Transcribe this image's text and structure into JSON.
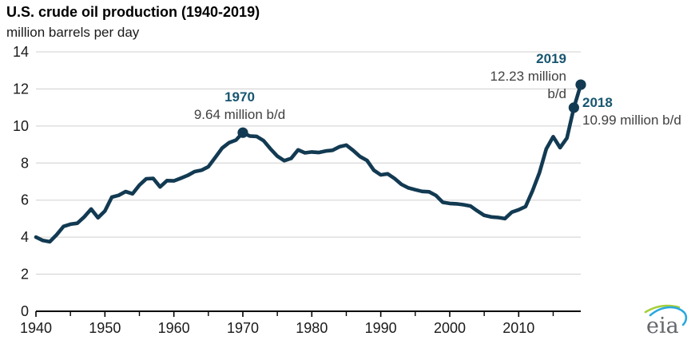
{
  "header": {
    "title": "U.S. crude oil production (1940-2019)",
    "subtitle": "million barrels per day"
  },
  "chart_data": {
    "type": "line",
    "title": "U.S. crude oil production (1940-2019)",
    "xlabel": "",
    "ylabel": "million barrels per day",
    "xlim": [
      1940,
      2019
    ],
    "ylim": [
      0,
      14
    ],
    "grid": "horizontal",
    "legend": "none",
    "years": [
      1940,
      1941,
      1942,
      1943,
      1944,
      1945,
      1946,
      1947,
      1948,
      1949,
      1950,
      1951,
      1952,
      1953,
      1954,
      1955,
      1956,
      1957,
      1958,
      1959,
      1960,
      1961,
      1962,
      1963,
      1964,
      1965,
      1966,
      1967,
      1968,
      1969,
      1970,
      1971,
      1972,
      1973,
      1974,
      1975,
      1976,
      1977,
      1978,
      1979,
      1980,
      1981,
      1982,
      1983,
      1984,
      1985,
      1986,
      1987,
      1988,
      1989,
      1990,
      1991,
      1992,
      1993,
      1994,
      1995,
      1996,
      1997,
      1998,
      1999,
      2000,
      2001,
      2002,
      2003,
      2004,
      2005,
      2006,
      2007,
      2008,
      2009,
      2010,
      2011,
      2012,
      2013,
      2014,
      2015,
      2016,
      2017,
      2018,
      2019
    ],
    "values": [
      4.0,
      3.82,
      3.75,
      4.13,
      4.58,
      4.7,
      4.75,
      5.09,
      5.52,
      5.05,
      5.41,
      6.16,
      6.26,
      6.46,
      6.34,
      6.81,
      7.15,
      7.17,
      6.71,
      7.05,
      7.04,
      7.18,
      7.33,
      7.54,
      7.61,
      7.8,
      8.3,
      8.81,
      9.1,
      9.24,
      9.64,
      9.46,
      9.44,
      9.21,
      8.77,
      8.37,
      8.13,
      8.25,
      8.71,
      8.55,
      8.6,
      8.57,
      8.65,
      8.69,
      8.88,
      8.97,
      8.68,
      8.35,
      8.14,
      7.61,
      7.36,
      7.42,
      7.17,
      6.85,
      6.66,
      6.56,
      6.47,
      6.45,
      6.25,
      5.88,
      5.82,
      5.8,
      5.75,
      5.68,
      5.42,
      5.18,
      5.09,
      5.06,
      5.0,
      5.35,
      5.48,
      5.65,
      6.5,
      7.47,
      8.76,
      9.42,
      8.83,
      9.35,
      10.99,
      12.23
    ],
    "y_ticks": [
      0,
      2,
      4,
      6,
      8,
      10,
      12,
      14
    ],
    "x_major_ticks": [
      1940,
      1950,
      1960,
      1970,
      1980,
      1990,
      2000,
      2010
    ],
    "x_minor_ticks": [
      1945,
      1955,
      1965,
      1975,
      1985,
      1995,
      2005,
      2015
    ],
    "marker_years": [
      1970,
      2018,
      2019
    ],
    "annotations": [
      {
        "year": "1970",
        "value_lines": [
          "9.64 million b/d"
        ]
      },
      {
        "year": "2019",
        "value_lines": [
          "12.23 million",
          "b/d"
        ]
      },
      {
        "year": "2018",
        "value_lines": [
          "10.99 million b/d"
        ]
      }
    ],
    "colors": {
      "line": "#123a52",
      "marker": "#123a52",
      "grid": "#d9d9d9",
      "axis": "#000000",
      "tick_label": "#1a1a1a",
      "annotation_year": "#175670",
      "annotation_value": "#404040"
    }
  },
  "logo": {
    "text": "eia",
    "text_color": "#63666a",
    "swoosh_green": "#a6ce39",
    "swoosh_blue": "#2aa8df"
  }
}
